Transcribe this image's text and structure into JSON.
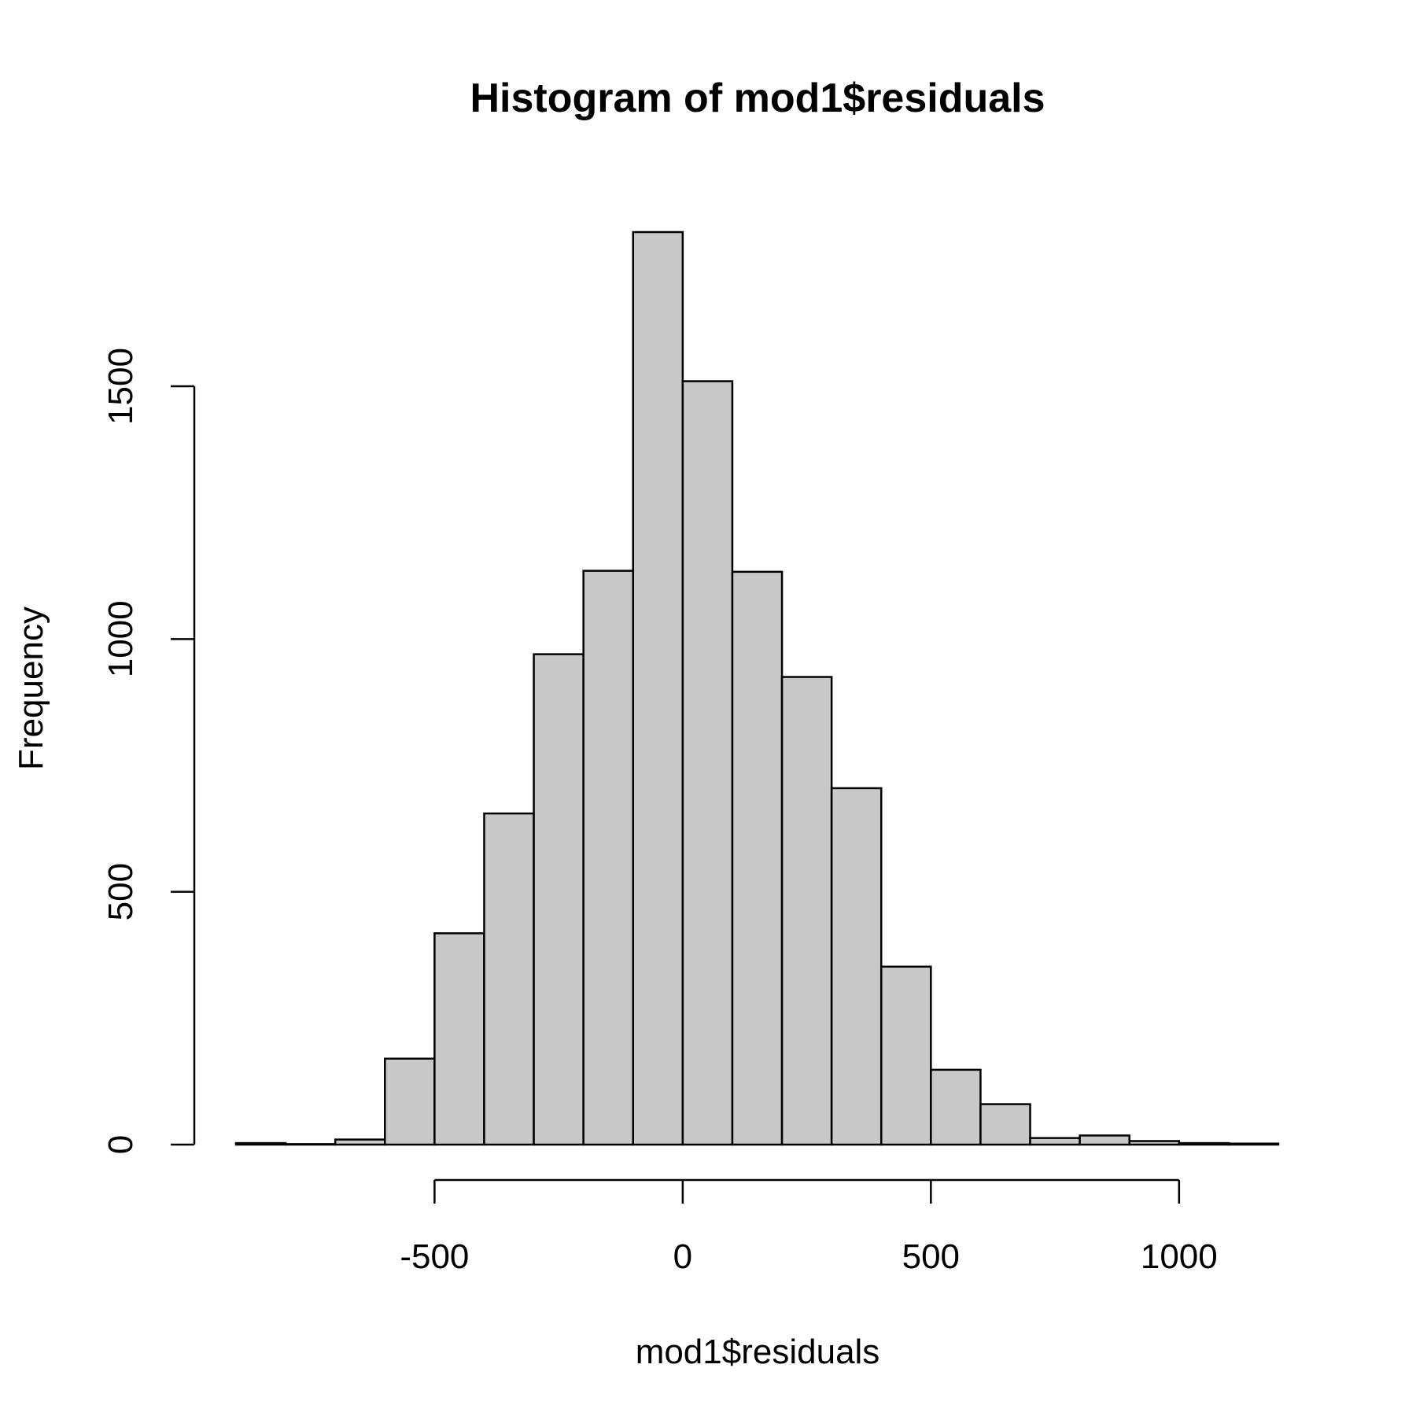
{
  "chart_data": {
    "type": "bar",
    "title": "Histogram of mod1$residuals",
    "xlabel": "mod1$residuals",
    "ylabel": "Frequency",
    "bin_edges": [
      -900,
      -800,
      -700,
      -600,
      -500,
      -400,
      -300,
      -200,
      -100,
      0,
      100,
      200,
      300,
      400,
      500,
      600,
      700,
      800,
      900,
      1000,
      1100,
      1200
    ],
    "values": [
      3,
      1,
      10,
      170,
      418,
      655,
      970,
      1135,
      1805,
      1510,
      1133,
      925,
      705,
      352,
      148,
      80,
      13,
      18,
      7,
      3,
      2
    ],
    "xlim": [
      -900,
      1200
    ],
    "ylim": [
      0,
      1805
    ],
    "x_ticks": [
      -500,
      0,
      500,
      1000
    ],
    "y_ticks": [
      0,
      500,
      1000,
      1500
    ],
    "x_tick_labels": [
      "-500",
      "0",
      "500",
      "1000"
    ],
    "y_tick_labels": [
      "0",
      "500",
      "1000",
      "1500"
    ],
    "bar_fill": "#c8c8c8",
    "bar_stroke": "#000000",
    "grid": false
  }
}
